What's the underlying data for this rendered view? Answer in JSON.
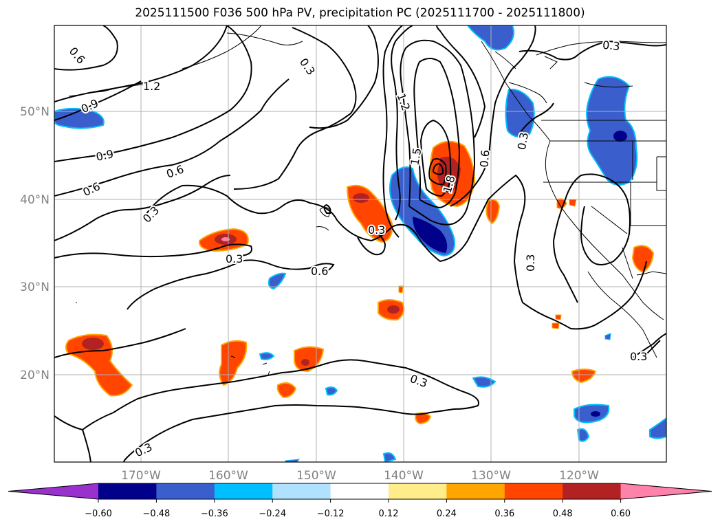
{
  "title": "2025111500 F036 500 hPa PV, precipitation PC (2025111700 - 2025111800)",
  "lat_labels": [
    "50°N",
    "40°N",
    "30°N",
    "20°N"
  ],
  "lon_labels": [
    "170°W",
    "160°W",
    "150°W",
    "140°W",
    "130°W",
    "120°W"
  ],
  "colorbar": {
    "ticks": [
      "−0.60",
      "−0.48",
      "−0.36",
      "−0.24",
      "−0.12",
      "0.12",
      "0.24",
      "0.36",
      "0.48",
      "0.60"
    ],
    "colors": [
      "#9932cc",
      "#00008b",
      "#3a5fcd",
      "#00bfff",
      "#b0e2ff",
      "#ffffff",
      "#ffec8b",
      "#ffa500",
      "#ff4500",
      "#b22222",
      "#ff82ab"
    ]
  },
  "contour_labels": [
    "0.6",
    "1.2",
    "0.9",
    "0.9",
    "0.6",
    "0.6",
    "0.3",
    "0.3",
    "0.3",
    "0.6",
    "0.3",
    "1.2",
    "1.5",
    "1.8",
    "0.6",
    "0.3",
    "0.3",
    "0.3",
    "0.3",
    "0.3",
    "0.3"
  ],
  "colors": {
    "frame": "#000000",
    "grid": "#b0b0b0",
    "contour": "#000000"
  }
}
